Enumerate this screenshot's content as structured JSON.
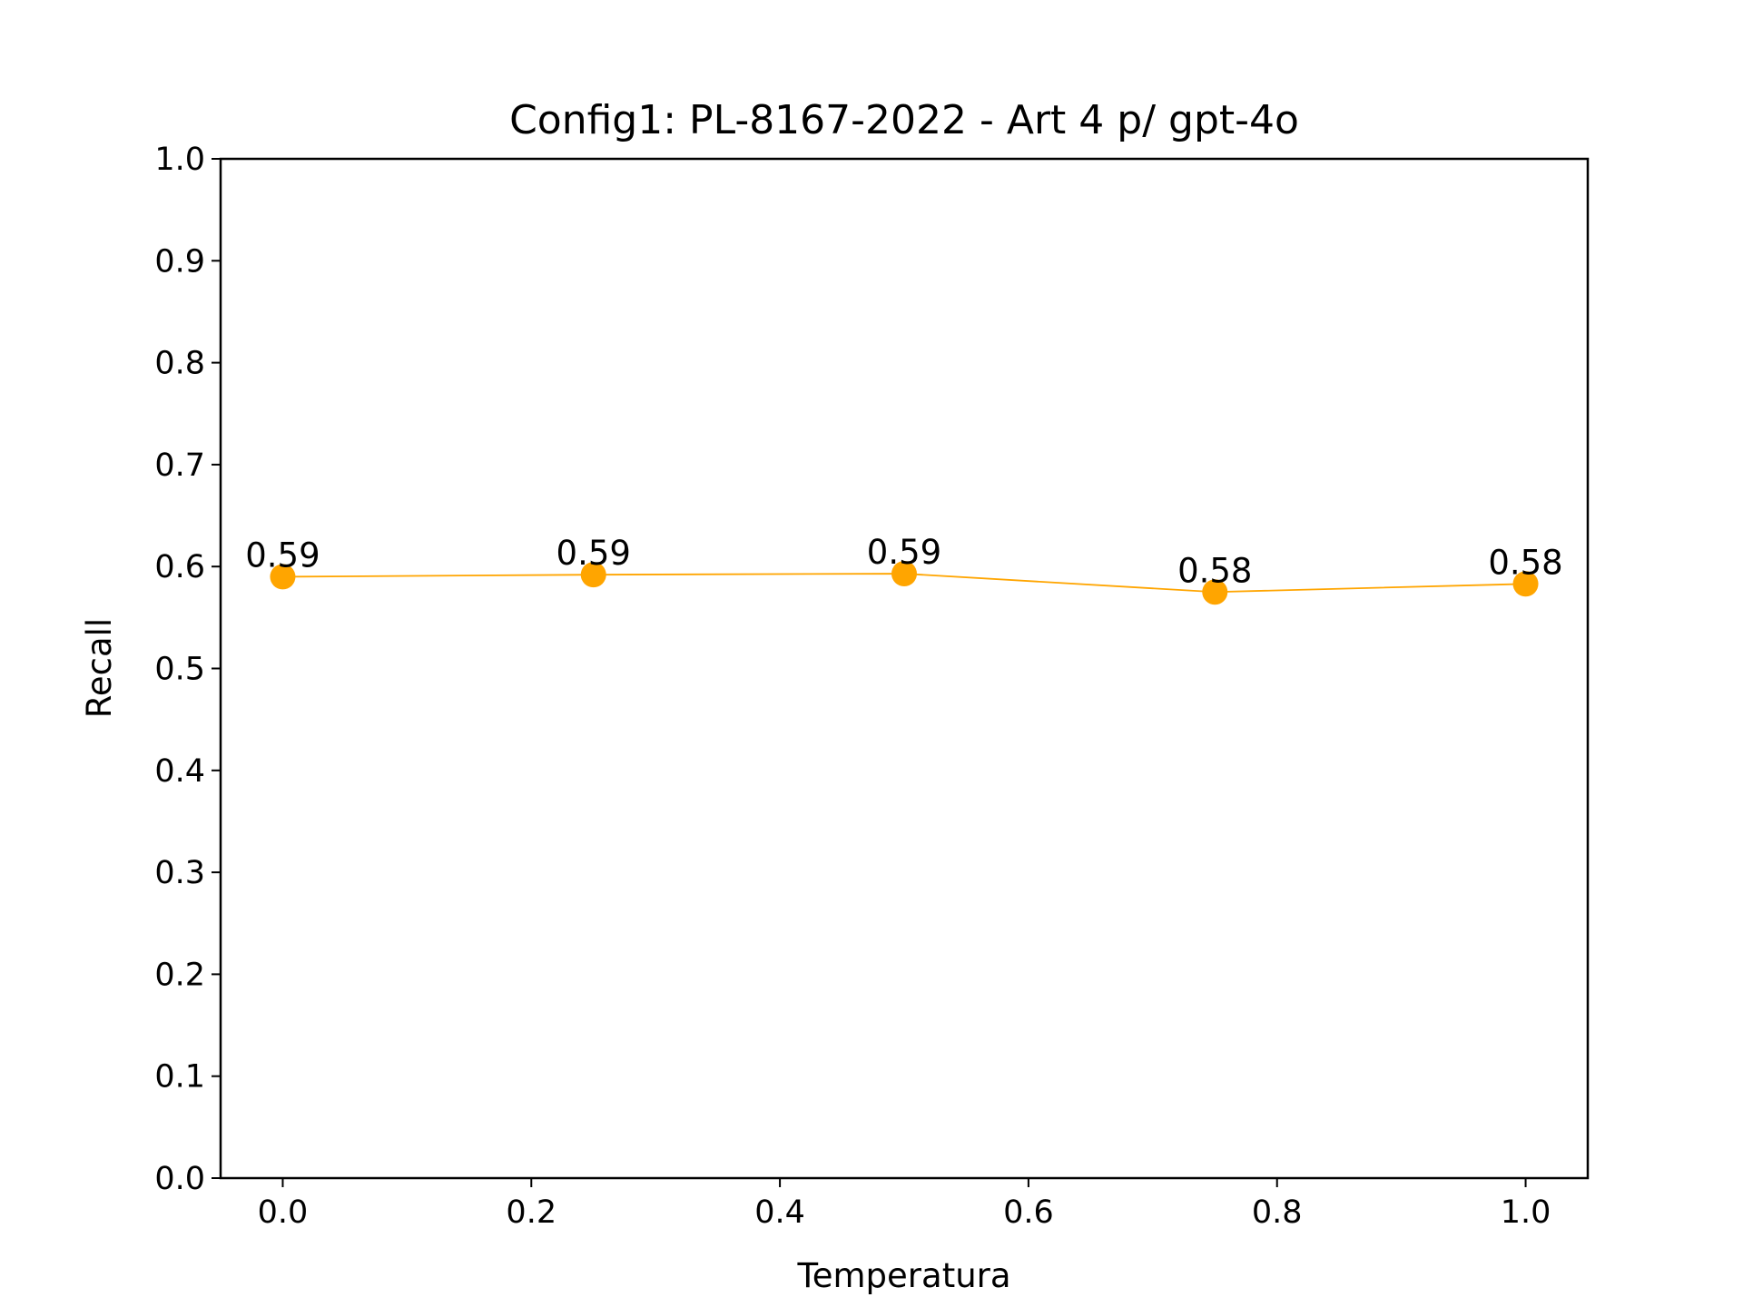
{
  "chart_data": {
    "type": "line",
    "title": "Config1: PL-8167-2022 - Art 4 p/ gpt-4o",
    "xlabel": "Temperatura",
    "ylabel": "Recall",
    "xlim": [
      -0.05,
      1.05
    ],
    "ylim": [
      0.0,
      1.0
    ],
    "xticks": [
      0.0,
      0.2,
      0.4,
      0.6,
      0.8,
      1.0
    ],
    "xtick_labels": [
      "0.0",
      "0.2",
      "0.4",
      "0.6",
      "0.8",
      "1.0"
    ],
    "yticks": [
      0.0,
      0.1,
      0.2,
      0.3,
      0.4,
      0.5,
      0.6,
      0.7,
      0.8,
      0.9,
      1.0
    ],
    "ytick_labels": [
      "0.0",
      "0.1",
      "0.2",
      "0.3",
      "0.4",
      "0.5",
      "0.6",
      "0.7",
      "0.8",
      "0.9",
      "1.0"
    ],
    "grid": false,
    "series": [
      {
        "color": "#FFA500",
        "x": [
          0.0,
          0.25,
          0.5,
          0.75,
          1.0
        ],
        "y": [
          0.59,
          0.592,
          0.593,
          0.575,
          0.583
        ],
        "labels": [
          "0.59",
          "0.59",
          "0.59",
          "0.58",
          "0.58"
        ]
      }
    ]
  }
}
